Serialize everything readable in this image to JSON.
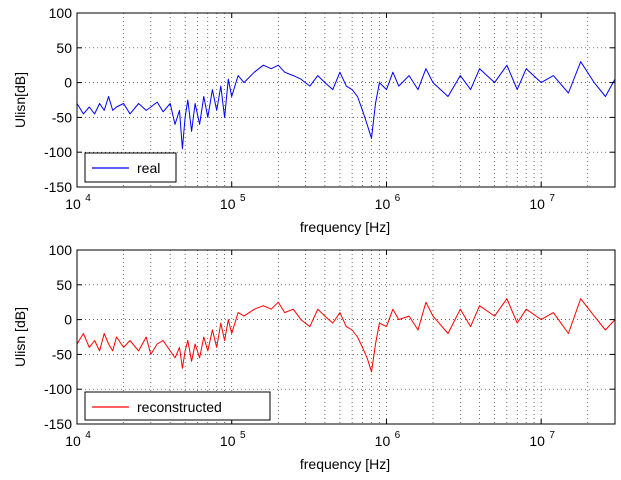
{
  "chart_data": [
    {
      "type": "line",
      "xscale": "log",
      "xlim": [
        10000,
        30000000
      ],
      "ylim": [
        -150,
        100
      ],
      "xlabel": "frequency [Hz]",
      "ylabel": "Ulisn[dB]",
      "xticks": [
        {
          "value": 10000,
          "base": "10",
          "exp": "4"
        },
        {
          "value": 100000,
          "base": "10",
          "exp": "5"
        },
        {
          "value": 1000000,
          "base": "10",
          "exp": "6"
        },
        {
          "value": 10000000,
          "base": "10",
          "exp": "7"
        }
      ],
      "yticks": [
        {
          "value": 100,
          "label": "100"
        },
        {
          "value": 50,
          "label": "50"
        },
        {
          "value": 0,
          "label": "0"
        },
        {
          "value": -50,
          "label": "-50"
        },
        {
          "value": -100,
          "label": "-100"
        },
        {
          "value": -150,
          "label": "-150"
        }
      ],
      "grid": true,
      "grid_style": "dotted",
      "legend": {
        "placement": "bottom-left",
        "entries": [
          "real"
        ]
      },
      "series": [
        {
          "name": "real",
          "color": "#0000ff",
          "x": [
            10000,
            11000,
            12000,
            13000,
            14000,
            15000,
            16000,
            17000,
            18000,
            20000,
            22000,
            25000,
            28000,
            30000,
            33000,
            36000,
            40000,
            43000,
            46000,
            48000,
            50000,
            52000,
            55000,
            58000,
            62000,
            66000,
            70000,
            75000,
            80000,
            85000,
            90000,
            95000,
            100000,
            110000,
            120000,
            140000,
            160000,
            180000,
            200000,
            220000,
            250000,
            280000,
            320000,
            360000,
            400000,
            450000,
            500000,
            550000,
            600000,
            650000,
            700000,
            750000,
            800000,
            850000,
            900000,
            1000000,
            1100000,
            1200000,
            1400000,
            1600000,
            1800000,
            2000000,
            2500000,
            3000000,
            3500000,
            4000000,
            5000000,
            6000000,
            7000000,
            8000000,
            10000000,
            12000000,
            15000000,
            18000000,
            22000000,
            26000000,
            30000000
          ],
          "y": [
            -30,
            -45,
            -35,
            -45,
            -30,
            -40,
            -20,
            -40,
            -35,
            -30,
            -45,
            -30,
            -40,
            -35,
            -28,
            -42,
            -30,
            -60,
            -40,
            -95,
            -50,
            -25,
            -70,
            -30,
            -60,
            -20,
            -50,
            -10,
            -40,
            -5,
            -50,
            5,
            -20,
            10,
            0,
            15,
            25,
            20,
            25,
            15,
            10,
            5,
            -5,
            10,
            0,
            -10,
            15,
            -5,
            -10,
            -20,
            -40,
            -60,
            -80,
            -30,
            0,
            -10,
            15,
            -5,
            10,
            -10,
            20,
            0,
            -20,
            10,
            -10,
            20,
            0,
            25,
            -10,
            20,
            0,
            10,
            -15,
            30,
            0,
            -20,
            5
          ]
        }
      ]
    },
    {
      "type": "line",
      "xscale": "log",
      "xlim": [
        10000,
        30000000
      ],
      "ylim": [
        -150,
        100
      ],
      "xlabel": "frequency [Hz]",
      "ylabel": "Ulisn [dB]",
      "xticks": [
        {
          "value": 10000,
          "base": "10",
          "exp": "4"
        },
        {
          "value": 100000,
          "base": "10",
          "exp": "5"
        },
        {
          "value": 1000000,
          "base": "10",
          "exp": "6"
        },
        {
          "value": 10000000,
          "base": "10",
          "exp": "7"
        }
      ],
      "yticks": [
        {
          "value": 100,
          "label": "100"
        },
        {
          "value": 50,
          "label": "50"
        },
        {
          "value": 0,
          "label": "0"
        },
        {
          "value": -50,
          "label": "-50"
        },
        {
          "value": -100,
          "label": "-100"
        },
        {
          "value": -150,
          "label": "-150"
        }
      ],
      "grid": true,
      "grid_style": "dotted",
      "legend": {
        "placement": "bottom-left",
        "entries": [
          "reconstructed"
        ]
      },
      "series": [
        {
          "name": "reconstructed",
          "color": "#ff0000",
          "x": [
            10000,
            11000,
            12000,
            13000,
            14000,
            15000,
            16000,
            17000,
            18000,
            20000,
            22000,
            25000,
            28000,
            30000,
            33000,
            36000,
            40000,
            43000,
            46000,
            48000,
            50000,
            52000,
            55000,
            58000,
            62000,
            66000,
            70000,
            75000,
            80000,
            85000,
            90000,
            95000,
            100000,
            110000,
            120000,
            140000,
            160000,
            180000,
            200000,
            220000,
            250000,
            280000,
            320000,
            360000,
            400000,
            450000,
            500000,
            550000,
            600000,
            650000,
            700000,
            750000,
            800000,
            850000,
            900000,
            1000000,
            1100000,
            1200000,
            1400000,
            1600000,
            1800000,
            2000000,
            2500000,
            3000000,
            3500000,
            4000000,
            5000000,
            6000000,
            7000000,
            8000000,
            10000000,
            12000000,
            15000000,
            18000000,
            22000000,
            26000000,
            30000000
          ],
          "y": [
            -35,
            -20,
            -40,
            -30,
            -45,
            -20,
            -35,
            -45,
            -25,
            -40,
            -30,
            -45,
            -25,
            -50,
            -35,
            -30,
            -45,
            -55,
            -40,
            -70,
            -45,
            -30,
            -60,
            -35,
            -55,
            -25,
            -45,
            -15,
            -40,
            -5,
            -30,
            0,
            -20,
            10,
            5,
            15,
            20,
            15,
            25,
            10,
            15,
            0,
            -10,
            15,
            5,
            -5,
            10,
            -10,
            -15,
            -25,
            -40,
            -55,
            -75,
            -35,
            -5,
            -10,
            15,
            0,
            5,
            -15,
            25,
            5,
            -20,
            15,
            -10,
            20,
            5,
            30,
            -5,
            15,
            0,
            10,
            -20,
            30,
            5,
            -15,
            0
          ]
        }
      ]
    }
  ]
}
